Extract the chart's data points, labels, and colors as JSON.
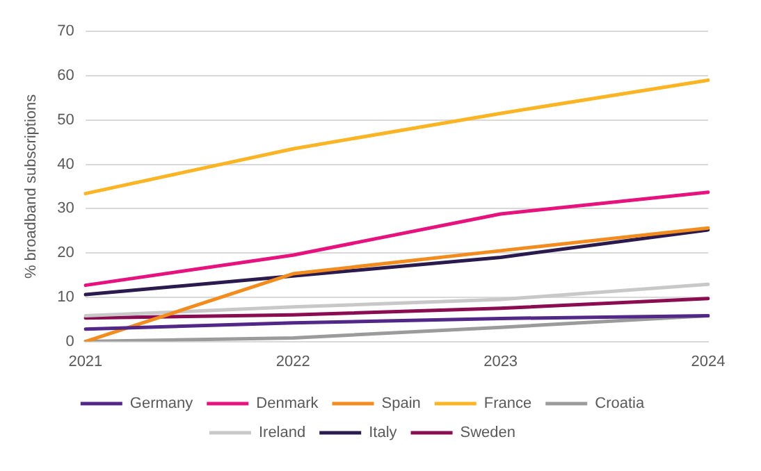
{
  "chart_data": {
    "type": "line",
    "ylabel": "% broadband subscriptions",
    "categories": [
      "2021",
      "2022",
      "2023",
      "2024"
    ],
    "ylim": [
      0,
      70
    ],
    "yticks": [
      0,
      10,
      20,
      30,
      40,
      50,
      60,
      70
    ],
    "grid": "y",
    "legend": "bottom",
    "marker": "none",
    "line_style": "solid",
    "series": [
      {
        "name": "Germany",
        "color": "#512888",
        "values": [
          2.8,
          4.2,
          5.2,
          5.8
        ]
      },
      {
        "name": "Denmark",
        "color": "#e6127d",
        "values": [
          12.7,
          19.5,
          28.8,
          33.7
        ]
      },
      {
        "name": "Spain",
        "color": "#f28c1f",
        "values": [
          0,
          15.3,
          20.5,
          25.6
        ]
      },
      {
        "name": "France",
        "color": "#fbb424",
        "values": [
          33.4,
          43.5,
          51.5,
          59
        ]
      },
      {
        "name": "Croatia",
        "color": "#9b9b9b",
        "values": [
          0,
          0.8,
          3.2,
          5.8
        ]
      },
      {
        "name": "Ireland",
        "color": "#c8c8c8",
        "values": [
          5.8,
          7.8,
          9.5,
          12.9
        ]
      },
      {
        "name": "Italy",
        "color": "#2a1a4e",
        "values": [
          10.6,
          14.8,
          19,
          25.2
        ]
      },
      {
        "name": "Sweden",
        "color": "#8a0d52",
        "values": [
          5.3,
          6,
          7.5,
          9.7
        ]
      }
    ]
  }
}
